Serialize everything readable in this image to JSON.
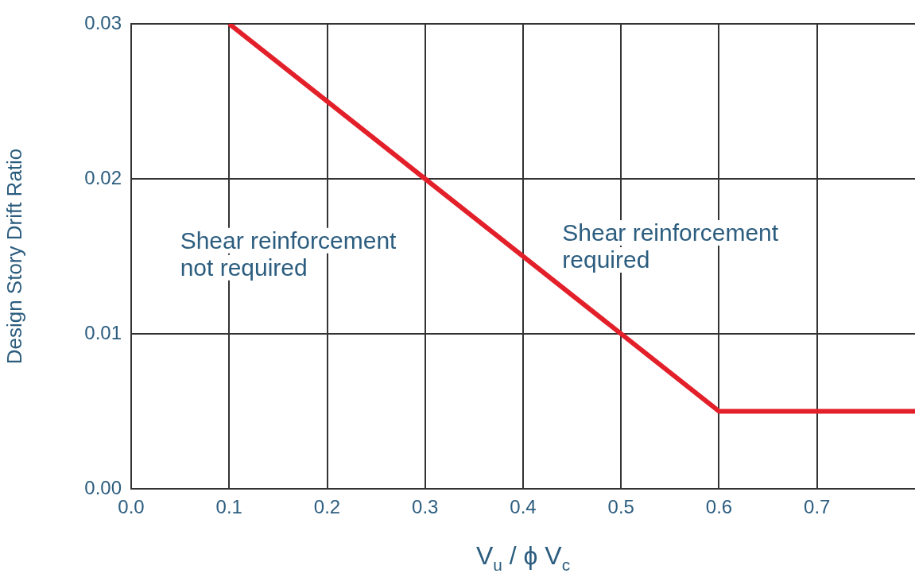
{
  "chart_data": {
    "type": "line",
    "xlabel": "V$_{u}$ / ϕ V$_{c}$",
    "ylabel": "Design Story Drift Ratio",
    "series": [
      {
        "color": "#e3202a",
        "x": [
          0.1,
          0.6,
          0.8
        ],
        "values": [
          0.03,
          0.005,
          0.005
        ]
      }
    ],
    "xlim": [
      0,
      0.8
    ],
    "xticks": [
      {
        "value": 0,
        "label": "0.0"
      },
      0.1,
      0.2,
      0.3,
      0.4,
      0.5,
      0.6,
      0.7
    ],
    "ylim": [
      0,
      0.03
    ],
    "yticks": [
      {
        "value": 0,
        "label": "0.00"
      },
      {
        "value": 0.01,
        "label": "0.01"
      },
      {
        "value": 0.02,
        "label": "0.02"
      },
      {
        "value": 0.03,
        "label": "0.03"
      }
    ],
    "annotations": [
      "Shear reinforcement\nnot required",
      "Shear reinforcement\nrequired"
    ],
    "grid": true,
    "legend": false,
    "marker": "none",
    "line_style": "solid"
  }
}
